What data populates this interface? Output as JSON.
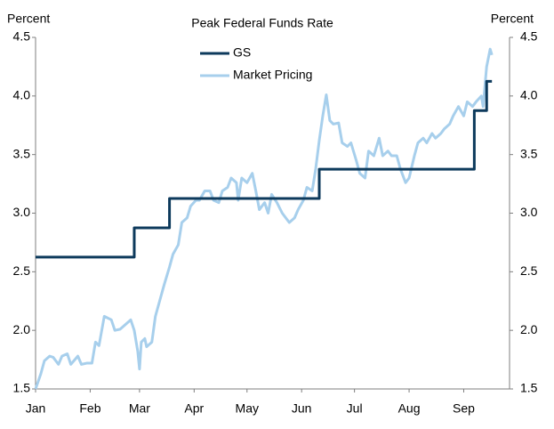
{
  "chart_data": {
    "type": "line",
    "title": "Peak Federal Funds Rate",
    "y_label": "Percent",
    "y2_label": "Percent",
    "xlim": [
      0,
      269
    ],
    "xticks": [
      {
        "value": 0,
        "label": "Jan"
      },
      {
        "value": 31,
        "label": "Feb"
      },
      {
        "value": 59,
        "label": "Mar"
      },
      {
        "value": 90,
        "label": "Apr"
      },
      {
        "value": 120,
        "label": "May"
      },
      {
        "value": 151,
        "label": "Jun"
      },
      {
        "value": 181,
        "label": "Jul"
      },
      {
        "value": 212,
        "label": "Aug"
      },
      {
        "value": 243,
        "label": "Sep"
      }
    ],
    "ylim": [
      1.5,
      4.5
    ],
    "yticks": [
      1.5,
      {
        "value": 2,
        "label": "2.0"
      },
      2.5,
      {
        "value": 3,
        "label": "3.0"
      },
      3.5,
      {
        "value": 4,
        "label": "4.0"
      },
      4.5
    ],
    "y2lim": [
      1.5,
      4.5
    ],
    "y2ticks": [
      1.5,
      {
        "value": 2,
        "label": "2.0"
      },
      2.5,
      {
        "value": 3,
        "label": "3.0"
      },
      3.5,
      {
        "value": 4,
        "label": "4.0"
      },
      4.5
    ],
    "grid": false,
    "series": [
      {
        "name": "GS",
        "color": "#0d3a5c",
        "x": [
          0,
          56,
          56,
          76,
          76,
          161,
          161,
          249,
          249,
          256,
          256,
          259
        ],
        "values": [
          2.625,
          2.625,
          2.875,
          2.875,
          3.125,
          3.125,
          3.375,
          3.375,
          3.875,
          3.875,
          4.125,
          4.125
        ]
      },
      {
        "name": "Market Pricing",
        "color": "#a7cfec",
        "x": [
          0,
          3,
          5,
          8,
          10,
          13,
          15,
          18,
          20,
          24,
          26,
          29,
          32,
          34,
          36,
          39,
          43,
          45,
          48,
          51,
          54,
          56,
          58,
          59,
          60,
          62,
          63,
          66,
          68,
          73,
          76,
          78,
          81,
          83,
          86,
          88,
          91,
          93,
          96,
          99,
          101,
          104,
          106,
          109,
          111,
          114,
          115,
          117,
          120,
          123,
          125,
          127,
          130,
          132,
          134,
          137,
          140,
          144,
          147,
          149,
          152,
          154,
          157,
          159,
          161,
          163,
          165,
          167,
          169,
          172,
          174,
          177,
          179,
          182,
          184,
          187,
          189,
          192,
          195,
          197,
          200,
          202,
          205,
          207,
          210,
          212,
          215,
          217,
          220,
          222,
          225,
          227,
          230,
          232,
          235,
          237,
          240,
          243,
          245,
          248,
          250,
          253,
          254,
          256,
          258,
          259
        ],
        "values": [
          1.5,
          1.63,
          1.74,
          1.78,
          1.77,
          1.71,
          1.78,
          1.8,
          1.71,
          1.78,
          1.71,
          1.72,
          1.72,
          1.9,
          1.87,
          2.12,
          2.09,
          2.0,
          2.01,
          2.05,
          2.09,
          2.0,
          1.82,
          1.67,
          1.9,
          1.93,
          1.86,
          1.9,
          2.12,
          2.39,
          2.54,
          2.65,
          2.73,
          2.92,
          2.96,
          3.06,
          3.11,
          3.11,
          3.19,
          3.19,
          3.11,
          3.09,
          3.19,
          3.22,
          3.3,
          3.26,
          3.11,
          3.3,
          3.26,
          3.34,
          3.19,
          3.03,
          3.09,
          3.0,
          3.16,
          3.09,
          3.0,
          2.92,
          2.96,
          3.03,
          3.11,
          3.22,
          3.19,
          3.38,
          3.62,
          3.83,
          4.01,
          3.79,
          3.76,
          3.77,
          3.6,
          3.57,
          3.6,
          3.45,
          3.34,
          3.3,
          3.53,
          3.49,
          3.64,
          3.49,
          3.53,
          3.49,
          3.49,
          3.38,
          3.26,
          3.3,
          3.49,
          3.6,
          3.64,
          3.6,
          3.68,
          3.64,
          3.68,
          3.72,
          3.76,
          3.83,
          3.91,
          3.83,
          3.95,
          3.91,
          3.95,
          4.0,
          3.91,
          4.25,
          4.4,
          4.35
        ]
      }
    ]
  }
}
